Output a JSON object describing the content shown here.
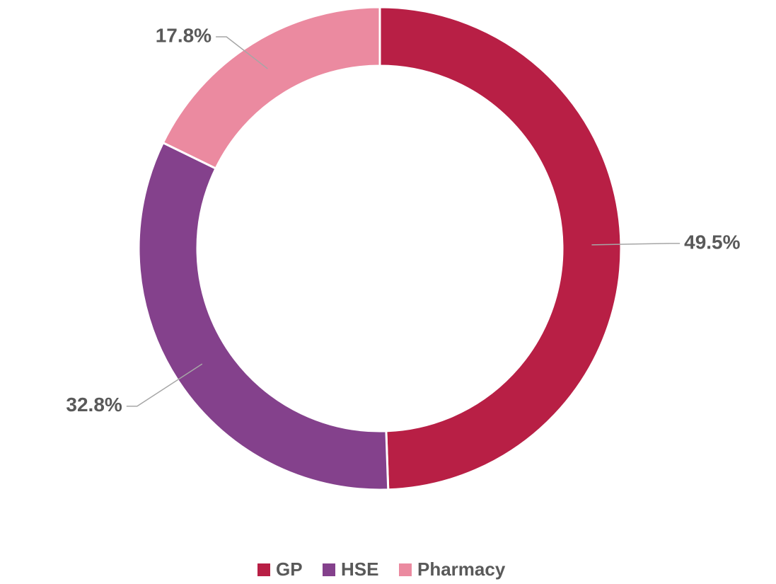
{
  "chart_data": {
    "type": "donut",
    "categories": [
      "GP",
      "HSE",
      "Pharmacy"
    ],
    "values": [
      49.5,
      32.8,
      17.8
    ],
    "value_labels": [
      "49.5%",
      "32.8%",
      "17.8%"
    ],
    "colors": [
      "#b81f45",
      "#84418c",
      "#eb8aa0"
    ],
    "legend": "bottom"
  }
}
